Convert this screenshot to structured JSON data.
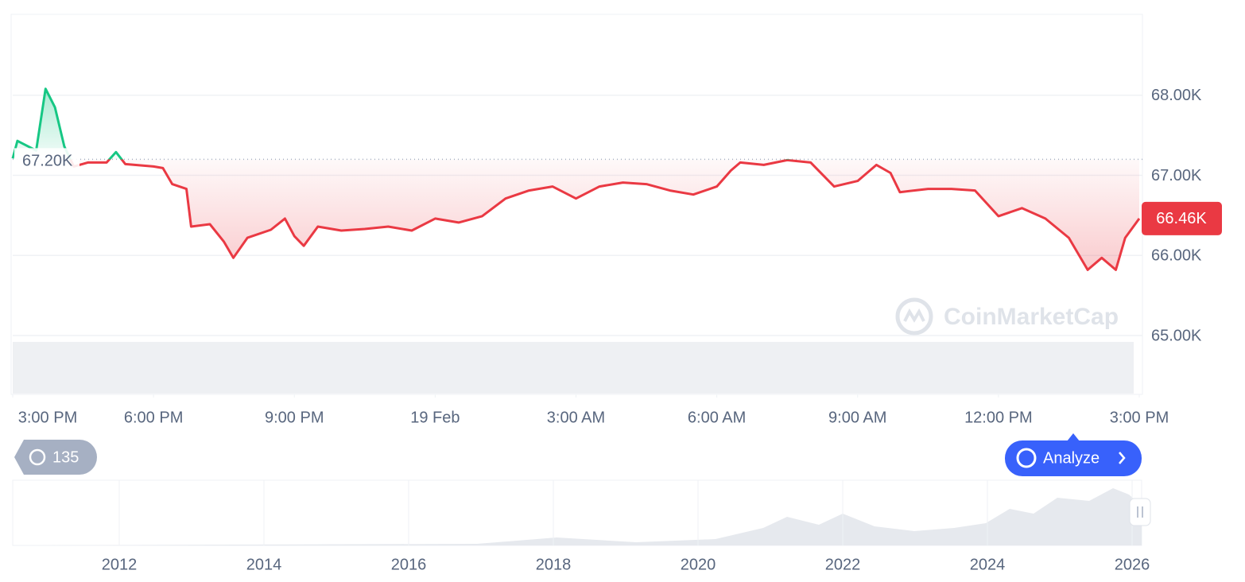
{
  "chart_data": {
    "type": "line",
    "x": [
      0,
      0.1,
      0.5,
      0.7,
      0.9,
      1.1,
      1.3,
      1.6,
      2.0,
      2.2,
      2.4,
      3.0,
      3.2,
      3.4,
      3.7,
      3.8,
      4.2,
      4.5,
      4.7,
      5.0,
      5.5,
      5.8,
      6.0,
      6.2,
      6.5,
      7.0,
      7.5,
      8.0,
      8.5,
      9.0,
      9.5,
      10.0,
      10.5,
      11.0,
      11.5,
      12.0,
      12.5,
      13.0,
      13.5,
      14.0,
      14.5,
      15.0,
      15.3,
      15.5,
      16.0,
      16.5,
      17.0,
      17.5,
      18.0,
      18.4,
      18.7,
      18.9,
      19.5,
      20.0,
      20.5,
      21.0,
      21.5,
      22.0,
      22.5,
      22.9,
      23.2,
      23.5,
      23.7,
      24.0
    ],
    "values": [
      67210,
      67430,
      67310,
      68080,
      67850,
      67360,
      67110,
      67160,
      67160,
      67290,
      67140,
      67110,
      67090,
      66890,
      66830,
      66360,
      66390,
      66170,
      65970,
      66220,
      66320,
      66460,
      66240,
      66120,
      66360,
      66310,
      66330,
      66360,
      66310,
      66460,
      66410,
      66490,
      66710,
      66810,
      66860,
      66710,
      66860,
      66910,
      66890,
      66810,
      66760,
      66860,
      67060,
      67160,
      67130,
      67190,
      67160,
      66860,
      66930,
      67130,
      67030,
      66790,
      66830,
      66830,
      66810,
      66490,
      66590,
      66460,
      66220,
      65820,
      65970,
      65820,
      66220,
      66460
    ],
    "xlim": [
      0,
      24
    ],
    "xticks": [
      {
        "value": 0,
        "label": "3:00 PM"
      },
      {
        "value": 3,
        "label": "6:00 PM"
      },
      {
        "value": 6,
        "label": "9:00 PM"
      },
      {
        "value": 9,
        "label": "19 Feb"
      },
      {
        "value": 12,
        "label": "3:00 AM"
      },
      {
        "value": 15,
        "label": "6:00 AM"
      },
      {
        "value": 18,
        "label": "9:00 AM"
      },
      {
        "value": 21,
        "label": "12:00 PM"
      },
      {
        "value": 24,
        "label": "3:00 PM"
      }
    ],
    "ylim": [
      65000,
      69000
    ],
    "yticks": [
      {
        "value": 65000,
        "label": "65.00K"
      },
      {
        "value": 66000,
        "label": "66.00K"
      },
      {
        "value": 67000,
        "label": "67.00K"
      },
      {
        "value": 68000,
        "label": "68.00K"
      }
    ],
    "baseline": {
      "value": 67200,
      "label": "67.20K"
    },
    "current_price": {
      "value": 66460,
      "label": "66.46K"
    },
    "colors": {
      "up": "#16c784",
      "down": "#ea3943"
    },
    "grid": true
  },
  "watermark": "CoinMarketCap",
  "controls": {
    "history_count": 135,
    "analyze": "Analyze"
  },
  "navigator": {
    "labels": [
      "2012",
      "2014",
      "2016",
      "2018",
      "2020",
      "2022",
      "2024",
      "2026"
    ]
  }
}
